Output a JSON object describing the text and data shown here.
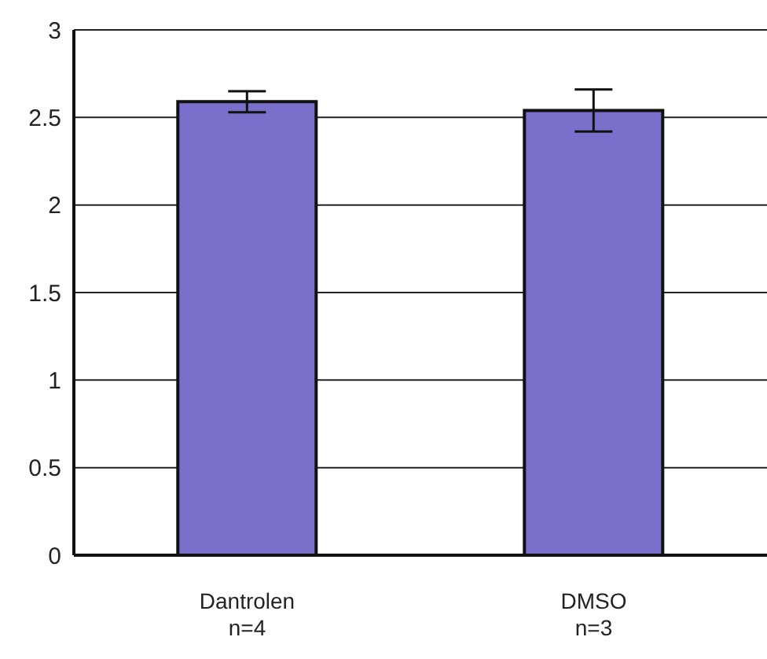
{
  "chart_data": {
    "type": "bar",
    "categories": [
      "Dantrolen\nn=4",
      "DMSO\nn=3"
    ],
    "values": [
      2.59,
      2.54
    ],
    "errors": [
      0.06,
      0.12
    ],
    "color": "#7b6fcc",
    "ylim": [
      0,
      3
    ],
    "yticks": [
      0,
      0.5,
      1,
      1.5,
      2,
      2.5,
      3
    ],
    "grid": "y"
  }
}
